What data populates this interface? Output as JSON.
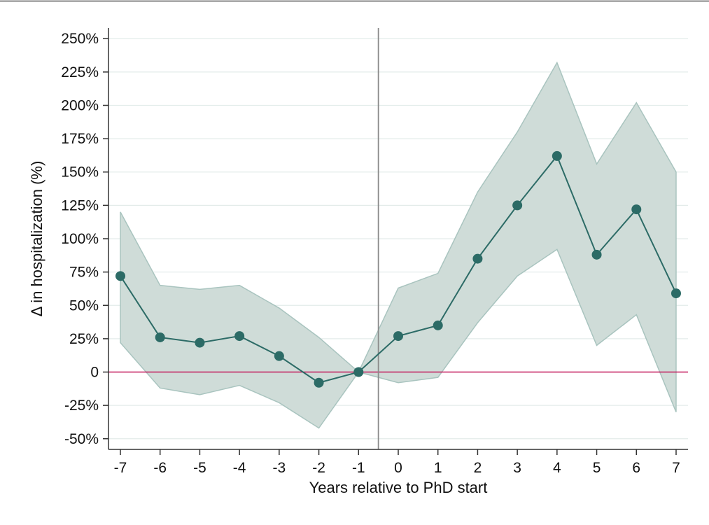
{
  "chart_data": {
    "type": "line",
    "title": "",
    "xlabel": "Years relative to PhD start",
    "ylabel": "Δ in hospitalization (%)",
    "x": [
      -7,
      -6,
      -5,
      -4,
      -3,
      -2,
      -1,
      0,
      1,
      2,
      3,
      4,
      5,
      6,
      7
    ],
    "xlim": [
      -7.3,
      7.3
    ],
    "ylim": [
      -58,
      258
    ],
    "yticks": [
      -50,
      -25,
      0,
      25,
      50,
      75,
      100,
      125,
      150,
      175,
      200,
      225,
      250
    ],
    "ytick_labels": [
      "-50%",
      "-25%",
      "0",
      "25%",
      "50%",
      "75%",
      "100%",
      "125%",
      "150%",
      "175%",
      "200%",
      "225%",
      "250%"
    ],
    "xtick_labels": [
      "-7",
      "-6",
      "-5",
      "-4",
      "-3",
      "-2",
      "-1",
      "0",
      "1",
      "2",
      "3",
      "4",
      "5",
      "6",
      "7"
    ],
    "grid": true,
    "vertical_reference_x": -0.5,
    "horizontal_reference_y": 0,
    "series": [
      {
        "values": [
          72,
          26,
          22,
          27,
          12,
          -8,
          0,
          27,
          35,
          85,
          125,
          162,
          88,
          122,
          59
        ],
        "ci_lower": [
          22,
          -12,
          -17,
          -10,
          -23,
          -42,
          0,
          -8,
          -4,
          37,
          72,
          92,
          20,
          43,
          -30
        ],
        "ci_upper": [
          120,
          65,
          62,
          65,
          48,
          26,
          0,
          63,
          74,
          135,
          180,
          232,
          156,
          202,
          150
        ]
      }
    ],
    "colors": {
      "line": "#2c6b66",
      "band": "#cfdcd8",
      "band_edge": "#a9c4bf",
      "zero_line": "#c2185b",
      "ref_line": "#8a8a8a",
      "grid": "#e3ecea",
      "axis": "#333333"
    }
  }
}
